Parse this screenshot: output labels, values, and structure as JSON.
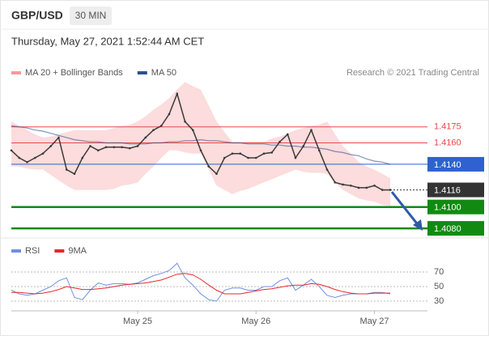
{
  "header": {
    "symbol": "GBP/USD",
    "interval": "30 MIN",
    "timestamp": "Thursday, May 27, 2021 1:52:44 AM CET",
    "credit": "Research © 2021 Trading Central"
  },
  "chart_data": [
    {
      "type": "line",
      "ylim": [
        1.4074,
        1.4218
      ],
      "close": {
        "color": "#3a3a3a",
        "values": [
          1.4153,
          1.4146,
          1.4142,
          1.4146,
          1.415,
          1.4157,
          1.4165,
          1.4135,
          1.4131,
          1.4146,
          1.4157,
          1.4153,
          1.4156,
          1.4156,
          1.4156,
          1.4155,
          1.4157,
          1.4165,
          1.4172,
          1.4176,
          1.4187,
          1.4206,
          1.418,
          1.4172,
          1.4153,
          1.4138,
          1.4131,
          1.4146,
          1.415,
          1.415,
          1.4146,
          1.4146,
          1.415,
          1.4151,
          1.4161,
          1.4168,
          1.4146,
          1.4157,
          1.4172,
          1.4153,
          1.4135,
          1.4123,
          1.4121,
          1.412,
          1.4118,
          1.4118,
          1.412,
          1.4116,
          1.4116
        ]
      },
      "series": [
        {
          "name": "MA 20 + Bollinger Bands",
          "color": "#f59a9a",
          "upper": [
            1.418,
            1.4176,
            1.4172,
            1.4168,
            1.4165,
            1.4166,
            1.4168,
            1.417,
            1.4172,
            1.4172,
            1.4172,
            1.4172,
            1.4172,
            1.4174,
            1.4176,
            1.4177,
            1.418,
            1.4185,
            1.4191,
            1.4196,
            1.4202,
            1.421,
            1.4217,
            1.4213,
            1.421,
            1.4195,
            1.418,
            1.417,
            1.4161,
            1.4161,
            1.4161,
            1.4161,
            1.4161,
            1.4164,
            1.4166,
            1.4169,
            1.4172,
            1.4174,
            1.4176,
            1.4177,
            1.418,
            1.4168,
            1.4157,
            1.415,
            1.4142,
            1.4138,
            1.4135,
            1.4131,
            1.4127
          ],
          "lower": [
            1.4138,
            1.4138,
            1.4136,
            1.4135,
            1.4135,
            1.413,
            1.4125,
            1.412,
            1.4116,
            1.4116,
            1.4116,
            1.4116,
            1.4116,
            1.4117,
            1.412,
            1.4121,
            1.4123,
            1.4131,
            1.4138,
            1.4146,
            1.4153,
            1.4153,
            1.4151,
            1.415,
            1.415,
            1.4135,
            1.412,
            1.4116,
            1.4112,
            1.4115,
            1.4117,
            1.412,
            1.4123,
            1.4126,
            1.4129,
            1.4132,
            1.4135,
            1.4133,
            1.4132,
            1.4132,
            1.4131,
            1.4123,
            1.4116,
            1.4112,
            1.4108,
            1.4106,
            1.4105,
            1.4102,
            1.4101
          ]
        },
        {
          "name": "MA 50",
          "color": "#2d4f8f",
          "values": [
            1.4176,
            1.4175,
            1.4174,
            1.4172,
            1.4171,
            1.4169,
            1.4167,
            1.4165,
            1.4163,
            1.4162,
            1.4161,
            1.4161,
            1.416,
            1.416,
            1.416,
            1.4159,
            1.4159,
            1.4159,
            1.416,
            1.416,
            1.4161,
            1.4161,
            1.4162,
            1.4162,
            1.4163,
            1.4162,
            1.4162,
            1.4161,
            1.416,
            1.416,
            1.4159,
            1.4159,
            1.4159,
            1.4158,
            1.4158,
            1.4157,
            1.4157,
            1.4156,
            1.4156,
            1.4155,
            1.4154,
            1.4152,
            1.4151,
            1.4149,
            1.4148,
            1.4145,
            1.4143,
            1.4142,
            1.414
          ]
        }
      ],
      "levels": [
        {
          "value": 1.4175,
          "label": "1.4175",
          "color": "#e8474a",
          "boxed": false,
          "line": "solid"
        },
        {
          "value": 1.416,
          "label": "1.4160",
          "color": "#e8474a",
          "boxed": false,
          "line": "solid"
        },
        {
          "value": 1.414,
          "label": "1.4140",
          "color": "#2e62cf",
          "boxed": true,
          "line": "solid"
        },
        {
          "value": 1.4116,
          "label": "1.4116",
          "color": "#333333",
          "boxed": true,
          "line": "dotted"
        },
        {
          "value": 1.41,
          "label": "1.4100",
          "color": "#128a12",
          "boxed": true,
          "line": "thick"
        },
        {
          "value": 1.408,
          "label": "1.4080",
          "color": "#128a12",
          "boxed": true,
          "line": "thick"
        }
      ]
    },
    {
      "type": "line",
      "categories": [
        null,
        null,
        null,
        null,
        null,
        null,
        null,
        null,
        null,
        null,
        null,
        null,
        null,
        null,
        null,
        null,
        "May 25",
        null,
        null,
        null,
        null,
        null,
        null,
        null,
        null,
        null,
        null,
        null,
        null,
        null,
        null,
        "May 26",
        null,
        null,
        null,
        null,
        null,
        null,
        null,
        null,
        null,
        null,
        null,
        null,
        null,
        null,
        "May 27",
        null,
        null
      ],
      "ylim": [
        26,
        90
      ],
      "yticks": [
        70,
        50,
        30
      ],
      "grid": true,
      "series": [
        {
          "name": "RSI",
          "color": "#6f8fe0",
          "values": [
            45,
            40,
            38,
            40,
            45,
            50,
            58,
            62,
            35,
            32,
            45,
            55,
            52,
            54,
            54,
            53,
            55,
            60,
            65,
            68,
            72,
            82,
            62,
            52,
            40,
            32,
            30,
            45,
            48,
            48,
            45,
            45,
            50,
            50,
            58,
            62,
            45,
            52,
            60,
            50,
            38,
            35,
            38,
            40,
            40,
            40,
            42,
            42,
            40
          ]
        },
        {
          "name": "9MA",
          "color": "#e8282a",
          "values": [
            42,
            42,
            41,
            40,
            41,
            43,
            46,
            50,
            48,
            46,
            46,
            47,
            48,
            50,
            52,
            53,
            54,
            55,
            57,
            59,
            63,
            67,
            68,
            66,
            60,
            52,
            45,
            40,
            40,
            40,
            42,
            44,
            46,
            47,
            49,
            51,
            52,
            52,
            54,
            53,
            50,
            46,
            43,
            41,
            40,
            40,
            41,
            41,
            41
          ]
        }
      ]
    }
  ]
}
